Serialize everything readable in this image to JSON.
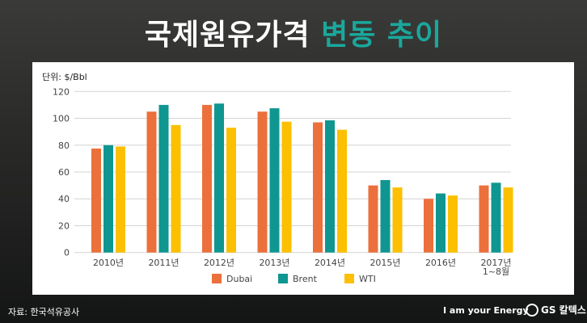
{
  "header": {
    "title_main": "국제원유가격",
    "title_accent": "변동 추이"
  },
  "footer": {
    "source": "자료: 한국석유공사",
    "slogan": "I am your Energy",
    "brand": "GS 칼텍스"
  },
  "chart_data": {
    "type": "bar",
    "title": "",
    "ylabel": "단위: $/Bbl",
    "ylim": [
      0,
      120
    ],
    "yticks": [
      0,
      20,
      40,
      60,
      80,
      100,
      120
    ],
    "grid": true,
    "legend": "bottom",
    "categories": [
      "2010년",
      "2011년",
      "2012년",
      "2013년",
      "2014년",
      "2015년",
      "2016년",
      "2017년\n1~8월"
    ],
    "series": [
      {
        "name": "Dubai",
        "color": "#ec703b",
        "values": [
          77.5,
          105,
          110,
          105,
          97,
          50,
          40,
          50
        ]
      },
      {
        "name": "Brent",
        "color": "#0f9690",
        "values": [
          80,
          110,
          111,
          107.5,
          98.5,
          54,
          44,
          52
        ]
      },
      {
        "name": "WTI",
        "color": "#fcc000",
        "values": [
          79,
          95,
          93,
          97.5,
          91.5,
          48.5,
          42.5,
          48.5
        ]
      }
    ]
  }
}
